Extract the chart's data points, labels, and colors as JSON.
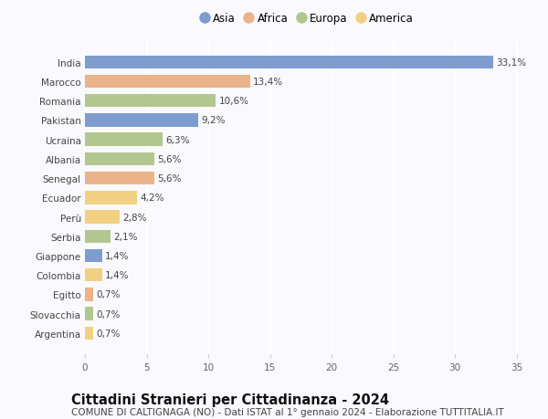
{
  "countries": [
    "India",
    "Marocco",
    "Romania",
    "Pakistan",
    "Ucraina",
    "Albania",
    "Senegal",
    "Ecuador",
    "Perù",
    "Serbia",
    "Giappone",
    "Colombia",
    "Egitto",
    "Slovacchia",
    "Argentina"
  ],
  "values": [
    33.1,
    13.4,
    10.6,
    9.2,
    6.3,
    5.6,
    5.6,
    4.2,
    2.8,
    2.1,
    1.4,
    1.4,
    0.7,
    0.7,
    0.7
  ],
  "labels": [
    "33,1%",
    "13,4%",
    "10,6%",
    "9,2%",
    "6,3%",
    "5,6%",
    "5,6%",
    "4,2%",
    "2,8%",
    "2,1%",
    "1,4%",
    "1,4%",
    "0,7%",
    "0,7%",
    "0,7%"
  ],
  "continents": [
    "Asia",
    "Africa",
    "Europa",
    "Asia",
    "Europa",
    "Europa",
    "Africa",
    "America",
    "America",
    "Europa",
    "Asia",
    "America",
    "Africa",
    "Europa",
    "America"
  ],
  "continent_colors": {
    "Asia": "#6e8fc9",
    "Africa": "#e8aa7a",
    "Europa": "#a8c080",
    "America": "#f0cc70"
  },
  "legend_order": [
    "Asia",
    "Africa",
    "Europa",
    "America"
  ],
  "xlim": [
    0,
    36
  ],
  "xticks": [
    0,
    5,
    10,
    15,
    20,
    25,
    30,
    35
  ],
  "title": "Cittadini Stranieri per Cittadinanza - 2024",
  "subtitle": "COMUNE DI CALTIGNAGA (NO) - Dati ISTAT al 1° gennaio 2024 - Elaborazione TUTTITALIA.IT",
  "background_color": "#f9f9ff",
  "bar_height": 0.68,
  "title_fontsize": 10.5,
  "subtitle_fontsize": 7.5,
  "label_fontsize": 7.5,
  "ytick_fontsize": 7.5,
  "xtick_fontsize": 7.5,
  "legend_fontsize": 8.5
}
